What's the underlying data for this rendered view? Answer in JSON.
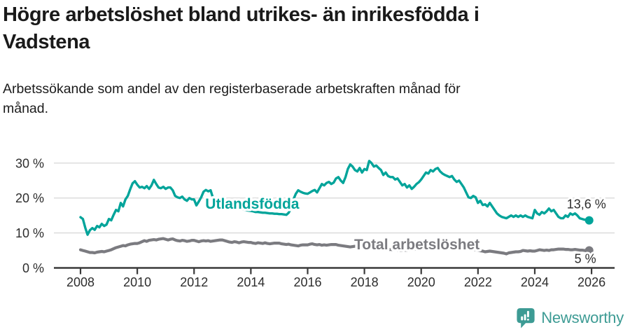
{
  "header": {
    "title_lines": [
      "Högre arbetslöshet bland utrikes- än inrikesfödda i",
      "Vadstena"
    ],
    "subtitle_lines": [
      "Arbetssökande som andel av den registerbaserade arbetskraften månad för",
      "månad."
    ]
  },
  "chart_data": {
    "type": "line",
    "x_unit": "year",
    "y_unit": "%",
    "x_start_year": 2008,
    "points_per_year": 12,
    "x_ticks": [
      2008,
      2010,
      2012,
      2014,
      2016,
      2018,
      2020,
      2022,
      2024,
      2026
    ],
    "x_tick_labels": [
      "2008",
      "2010",
      "2012",
      "2014",
      "2016",
      "2018",
      "2020",
      "2022",
      "2024",
      "2026"
    ],
    "y_ticks": [
      0,
      10,
      20,
      30
    ],
    "y_tick_labels": [
      "0 %",
      "10 %",
      "20 %",
      "30 %"
    ],
    "ylim": [
      0,
      31
    ],
    "xlim": [
      2007.1,
      2026.3
    ],
    "grid": "horizontal",
    "grid_color": "#d9d9d9",
    "axis_color": "#3a3a3a",
    "tick_label_color": "#2d2d2d",
    "annotation_color": "#2d2d2d",
    "series": [
      {
        "name": "Utlandsfödda",
        "color": "#00a49a",
        "label_pos": [
          2014.05,
          18.3
        ],
        "end_label": "13,6 %",
        "end_label_pos": [
          2025.82,
          18.2
        ],
        "end_value": 13.6,
        "values": [
          14.5,
          14.0,
          11.5,
          9.5,
          10.8,
          11.4,
          10.9,
          12.0,
          11.6,
          12.6,
          12.0,
          12.4,
          14.0,
          13.6,
          15.2,
          16.6,
          16.2,
          18.6,
          17.6,
          19.6,
          20.6,
          22.5,
          24.2,
          24.8,
          23.8,
          23.0,
          23.2,
          22.8,
          23.4,
          22.6,
          23.6,
          25.2,
          24.0,
          23.0,
          22.8,
          23.2,
          22.6,
          23.0,
          23.0,
          22.2,
          20.6,
          20.2,
          20.0,
          20.4,
          19.6,
          19.2,
          20.0,
          19.6,
          19.6,
          17.9,
          19.0,
          20.2,
          21.8,
          22.3,
          21.9,
          22.2,
          20.0,
          19.5,
          19.0,
          18.8,
          18.5,
          18.2,
          18.0,
          17.8,
          17.5,
          17.3,
          17.2,
          17.0,
          16.8,
          16.7,
          16.5,
          16.4,
          16.3,
          16.2,
          16.0,
          16.0,
          15.9,
          15.8,
          15.8,
          15.7,
          15.6,
          15.6,
          15.5,
          15.5,
          15.4,
          15.4,
          15.3,
          15.2,
          15.8,
          17.0,
          19.6,
          21.2,
          22.2,
          21.8,
          21.5,
          21.3,
          21.2,
          21.6,
          22.0,
          22.3,
          21.6,
          22.8,
          24.0,
          23.6,
          24.3,
          24.6,
          24.0,
          24.4,
          25.6,
          26.0,
          25.0,
          24.3,
          26.0,
          28.3,
          29.6,
          29.0,
          28.0,
          27.6,
          28.6,
          27.3,
          28.3,
          28.0,
          30.6,
          30.0,
          29.0,
          29.3,
          28.6,
          28.0,
          26.6,
          27.3,
          26.3,
          26.0,
          26.0,
          25.3,
          25.6,
          24.6,
          23.6,
          24.0,
          23.0,
          23.6,
          22.6,
          23.2,
          24.0,
          24.5,
          25.3,
          26.3,
          27.3,
          27.0,
          28.0,
          27.6,
          28.3,
          28.6,
          27.6,
          27.0,
          26.6,
          26.3,
          26.0,
          26.3,
          25.3,
          24.6,
          25.0,
          24.0,
          23.0,
          21.6,
          20.2,
          20.0,
          20.6,
          20.2,
          18.6,
          19.2,
          18.0,
          18.2,
          17.6,
          18.6,
          17.6,
          16.6,
          15.6,
          15.0,
          14.6,
          14.4,
          14.2,
          14.6,
          15.0,
          14.6,
          15.0,
          14.6,
          15.0,
          14.6,
          15.0,
          14.6,
          14.4,
          14.2,
          16.6,
          15.6,
          15.2,
          16.0,
          15.6,
          16.2,
          17.0,
          16.2,
          16.6,
          15.6,
          14.6,
          14.2,
          14.2,
          15.0,
          14.6,
          15.6,
          15.2,
          15.6,
          15.0,
          14.2,
          14.0,
          13.8,
          13.7,
          13.6
        ]
      },
      {
        "name": "Total arbetslöshet",
        "color": "#7b7b80",
        "label_pos": [
          2019.85,
          6.7
        ],
        "end_label": "5 %",
        "end_label_pos": [
          2025.78,
          2.6
        ],
        "end_value": 5.0,
        "values": [
          5.2,
          5.0,
          4.8,
          4.6,
          4.4,
          4.4,
          4.3,
          4.5,
          4.6,
          4.7,
          4.6,
          4.8,
          5.0,
          5.2,
          5.5,
          5.8,
          6.0,
          6.2,
          6.4,
          6.3,
          6.6,
          6.8,
          6.9,
          7.0,
          7.0,
          7.2,
          7.5,
          7.8,
          7.6,
          7.9,
          8.0,
          8.1,
          8.0,
          8.2,
          8.3,
          8.4,
          8.2,
          8.0,
          8.2,
          8.3,
          8.0,
          7.8,
          7.7,
          7.9,
          7.8,
          7.6,
          7.7,
          7.9,
          7.9,
          7.7,
          7.5,
          7.7,
          7.8,
          7.7,
          7.8,
          7.6,
          7.7,
          7.8,
          7.9,
          8.0,
          8.0,
          7.8,
          7.6,
          7.4,
          7.3,
          7.5,
          7.4,
          7.2,
          7.4,
          7.5,
          7.4,
          7.3,
          7.3,
          7.1,
          7.0,
          7.2,
          7.1,
          7.0,
          7.2,
          7.0,
          6.9,
          7.0,
          7.1,
          7.1,
          7.1,
          6.9,
          6.8,
          6.7,
          6.8,
          6.6,
          6.5,
          6.4,
          6.3,
          6.5,
          6.6,
          6.6,
          6.6,
          6.8,
          6.9,
          6.7,
          6.6,
          6.7,
          6.5,
          6.6,
          6.5,
          6.6,
          6.7,
          6.7,
          6.7,
          6.5,
          6.4,
          6.3,
          6.2,
          6.1,
          6.0,
          6.1,
          6.2,
          6.1,
          6.0,
          6.1,
          6.2,
          6.0,
          5.9,
          5.8,
          5.7,
          5.6,
          5.5,
          5.6,
          5.5,
          5.4,
          5.3,
          5.3,
          5.2,
          5.2,
          5.1,
          5.0,
          5.0,
          5.1,
          5.0,
          5.1,
          5.2,
          5.3,
          5.4,
          5.5,
          5.6,
          5.8,
          6.0,
          6.2,
          6.2,
          6.3,
          6.2,
          6.1,
          6.2,
          6.1,
          6.0,
          5.9,
          5.8,
          5.8,
          5.7,
          5.6,
          5.5,
          5.4,
          5.3,
          5.4,
          5.3,
          5.2,
          5.3,
          5.2,
          5.0,
          4.9,
          4.8,
          4.6,
          4.7,
          4.8,
          4.7,
          4.6,
          4.5,
          4.4,
          4.3,
          4.2,
          4.0,
          4.3,
          4.4,
          4.5,
          4.6,
          4.6,
          4.7,
          5.0,
          4.9,
          4.8,
          4.9,
          4.8,
          4.8,
          5.0,
          5.2,
          5.1,
          5.0,
          5.1,
          5.0,
          5.2,
          5.2,
          5.3,
          5.4,
          5.4,
          5.4,
          5.3,
          5.3,
          5.2,
          5.2,
          5.3,
          5.2,
          5.1,
          5.1,
          5.0,
          5.0,
          5.0
        ]
      }
    ]
  },
  "footer": {
    "brand": "Newsworthy",
    "brand_color": "#3d9b94",
    "logo_icon": "newsworthy-speech-bubble-barchart-icon"
  }
}
